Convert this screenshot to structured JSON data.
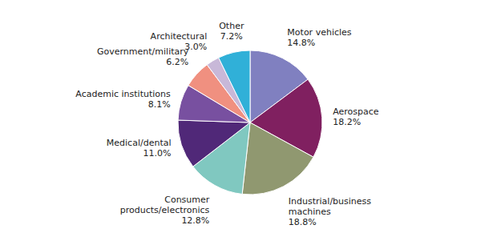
{
  "chart_data": {
    "type": "pie",
    "categories": [
      "Motor vehicles",
      "Aerospace",
      "Industrial/business\nmachines",
      "Consumer\nproducts/electronics",
      "Medical/dental",
      "Academic institutions",
      "Government/military",
      "Architectural",
      "Other"
    ],
    "values": [
      14.8,
      18.2,
      18.8,
      12.8,
      11.0,
      8.1,
      6.2,
      3.0,
      7.2
    ],
    "value_labels": [
      "14.8%",
      "18.2%",
      "18.8%",
      "12.8%",
      "11.0%",
      "8.1%",
      "6.2%",
      "3.0%",
      "7.2%"
    ],
    "colors": [
      "#8080C0",
      "#802060",
      "#909870",
      "#80C8C0",
      "#502878",
      "#7850A0",
      "#F09080",
      "#C8B8D8",
      "#30B0D8"
    ],
    "data_labels": true
  }
}
